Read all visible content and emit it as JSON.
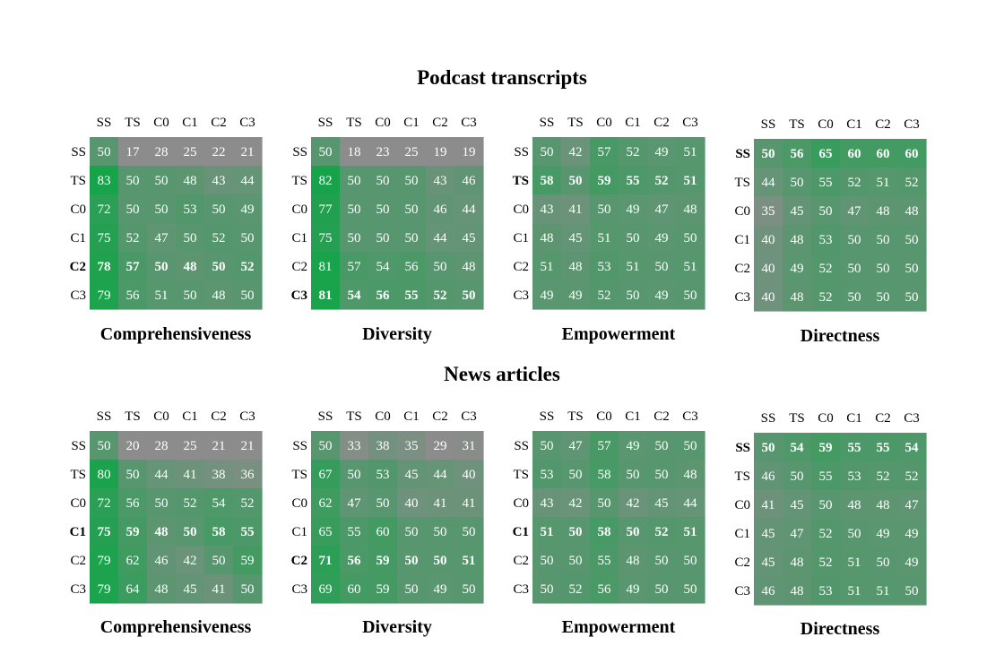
{
  "labels": [
    "SS",
    "TS",
    "C0",
    "C1",
    "C2",
    "C3"
  ],
  "colors": {
    "neutral": "#8c8c8c",
    "high": "#17a34a"
  },
  "sections": [
    {
      "title": "Podcast transcripts"
    },
    {
      "title": "News articles"
    }
  ],
  "chart_data": [
    {
      "type": "heatmap",
      "dataset": "Podcast transcripts",
      "metric": "Comprehensiveness",
      "bold_row": 4,
      "values": [
        [
          50,
          17,
          28,
          25,
          22,
          21
        ],
        [
          83,
          50,
          50,
          48,
          43,
          44
        ],
        [
          72,
          50,
          50,
          53,
          50,
          49
        ],
        [
          75,
          52,
          47,
          50,
          52,
          50
        ],
        [
          78,
          57,
          50,
          48,
          50,
          52
        ],
        [
          79,
          56,
          51,
          50,
          48,
          50
        ]
      ]
    },
    {
      "type": "heatmap",
      "dataset": "Podcast transcripts",
      "metric": "Diversity",
      "bold_row": 5,
      "values": [
        [
          50,
          18,
          23,
          25,
          19,
          19
        ],
        [
          82,
          50,
          50,
          50,
          43,
          46
        ],
        [
          77,
          50,
          50,
          50,
          46,
          44
        ],
        [
          75,
          50,
          50,
          50,
          44,
          45
        ],
        [
          81,
          57,
          54,
          56,
          50,
          48
        ],
        [
          81,
          54,
          56,
          55,
          52,
          50
        ]
      ]
    },
    {
      "type": "heatmap",
      "dataset": "Podcast transcripts",
      "metric": "Empowerment",
      "bold_row": 1,
      "values": [
        [
          50,
          42,
          57,
          52,
          49,
          51
        ],
        [
          58,
          50,
          59,
          55,
          52,
          51
        ],
        [
          43,
          41,
          50,
          49,
          47,
          48
        ],
        [
          48,
          45,
          51,
          50,
          49,
          50
        ],
        [
          51,
          48,
          53,
          51,
          50,
          51
        ],
        [
          49,
          49,
          52,
          50,
          49,
          50
        ]
      ]
    },
    {
      "type": "heatmap",
      "dataset": "Podcast transcripts",
      "metric": "Directness",
      "bold_row": 0,
      "values": [
        [
          50,
          56,
          65,
          60,
          60,
          60
        ],
        [
          44,
          50,
          55,
          52,
          51,
          52
        ],
        [
          35,
          45,
          50,
          47,
          48,
          48
        ],
        [
          40,
          48,
          53,
          50,
          50,
          50
        ],
        [
          40,
          49,
          52,
          50,
          50,
          50
        ],
        [
          40,
          48,
          52,
          50,
          50,
          50
        ]
      ]
    },
    {
      "type": "heatmap",
      "dataset": "News articles",
      "metric": "Comprehensiveness",
      "bold_row": 3,
      "values": [
        [
          50,
          20,
          28,
          25,
          21,
          21
        ],
        [
          80,
          50,
          44,
          41,
          38,
          36
        ],
        [
          72,
          56,
          50,
          52,
          54,
          52
        ],
        [
          75,
          59,
          48,
          50,
          58,
          55
        ],
        [
          79,
          62,
          46,
          42,
          50,
          59
        ],
        [
          79,
          64,
          48,
          45,
          41,
          50
        ]
      ]
    },
    {
      "type": "heatmap",
      "dataset": "News articles",
      "metric": "Diversity",
      "bold_row": 4,
      "values": [
        [
          50,
          33,
          38,
          35,
          29,
          31
        ],
        [
          67,
          50,
          53,
          45,
          44,
          40
        ],
        [
          62,
          47,
          50,
          40,
          41,
          41
        ],
        [
          65,
          55,
          60,
          50,
          50,
          50
        ],
        [
          71,
          56,
          59,
          50,
          50,
          51
        ],
        [
          69,
          60,
          59,
          50,
          49,
          50
        ]
      ]
    },
    {
      "type": "heatmap",
      "dataset": "News articles",
      "metric": "Empowerment",
      "bold_row": 3,
      "values": [
        [
          50,
          47,
          57,
          49,
          50,
          50
        ],
        [
          53,
          50,
          58,
          50,
          50,
          48
        ],
        [
          43,
          42,
          50,
          42,
          45,
          44
        ],
        [
          51,
          50,
          58,
          50,
          52,
          51
        ],
        [
          50,
          50,
          55,
          48,
          50,
          50
        ],
        [
          50,
          52,
          56,
          49,
          50,
          50
        ]
      ]
    },
    {
      "type": "heatmap",
      "dataset": "News articles",
      "metric": "Directness",
      "bold_row": 0,
      "values": [
        [
          50,
          54,
          59,
          55,
          55,
          54
        ],
        [
          46,
          50,
          55,
          53,
          52,
          52
        ],
        [
          41,
          45,
          50,
          48,
          48,
          47
        ],
        [
          45,
          47,
          52,
          50,
          49,
          49
        ],
        [
          45,
          48,
          52,
          51,
          50,
          49
        ],
        [
          46,
          48,
          53,
          51,
          51,
          50
        ]
      ]
    }
  ]
}
